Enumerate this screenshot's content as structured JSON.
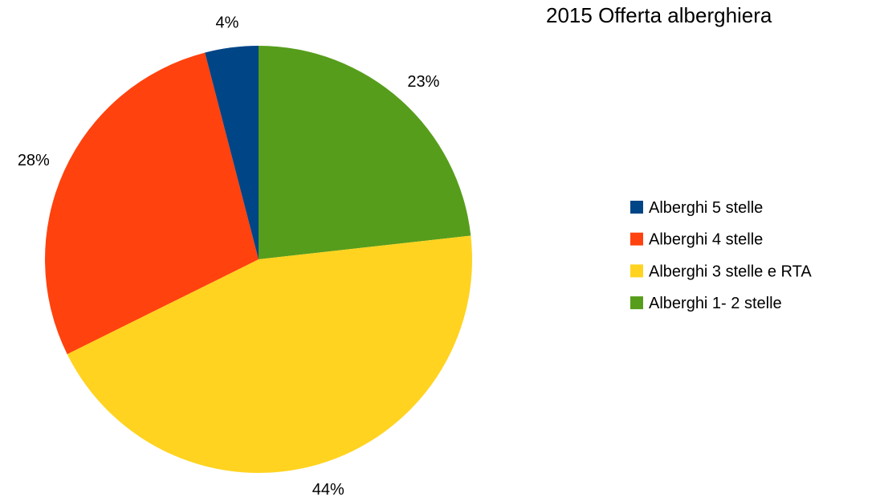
{
  "chart_data": {
    "type": "pie",
    "title": "2015 Offerta alberghiera",
    "categories": [
      "Alberghi 5 stelle",
      "Alberghi 4 stelle",
      "Alberghi 3 stelle e RTA",
      "Alberghi 1- 2 stelle"
    ],
    "values": [
      4,
      28,
      44,
      23
    ],
    "value_labels": [
      "4%",
      "28%",
      "44%",
      "23%"
    ],
    "colors": [
      "#004586",
      "#ff420e",
      "#ffd320",
      "#579d1c"
    ],
    "legend": "right"
  }
}
